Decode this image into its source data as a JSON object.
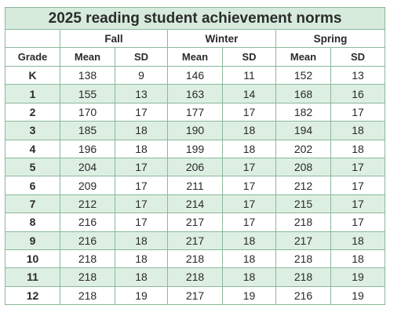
{
  "title": "2025 reading student achievement norms",
  "seasons": [
    "Fall",
    "Winter",
    "Spring"
  ],
  "headers": {
    "grade": "Grade",
    "mean": "Mean",
    "sd": "SD"
  },
  "rows": [
    {
      "grade": "K",
      "fall_mean": "138",
      "fall_sd": "9",
      "winter_mean": "146",
      "winter_sd": "11",
      "spring_mean": "152",
      "spring_sd": "13"
    },
    {
      "grade": "1",
      "fall_mean": "155",
      "fall_sd": "13",
      "winter_mean": "163",
      "winter_sd": "14",
      "spring_mean": "168",
      "spring_sd": "16"
    },
    {
      "grade": "2",
      "fall_mean": "170",
      "fall_sd": "17",
      "winter_mean": "177",
      "winter_sd": "17",
      "spring_mean": "182",
      "spring_sd": "17"
    },
    {
      "grade": "3",
      "fall_mean": "185",
      "fall_sd": "18",
      "winter_mean": "190",
      "winter_sd": "18",
      "spring_mean": "194",
      "spring_sd": "18"
    },
    {
      "grade": "4",
      "fall_mean": "196",
      "fall_sd": "18",
      "winter_mean": "199",
      "winter_sd": "18",
      "spring_mean": "202",
      "spring_sd": "18"
    },
    {
      "grade": "5",
      "fall_mean": "204",
      "fall_sd": "17",
      "winter_mean": "206",
      "winter_sd": "17",
      "spring_mean": "208",
      "spring_sd": "17"
    },
    {
      "grade": "6",
      "fall_mean": "209",
      "fall_sd": "17",
      "winter_mean": "211",
      "winter_sd": "17",
      "spring_mean": "212",
      "spring_sd": "17"
    },
    {
      "grade": "7",
      "fall_mean": "212",
      "fall_sd": "17",
      "winter_mean": "214",
      "winter_sd": "17",
      "spring_mean": "215",
      "spring_sd": "17"
    },
    {
      "grade": "8",
      "fall_mean": "216",
      "fall_sd": "17",
      "winter_mean": "217",
      "winter_sd": "17",
      "spring_mean": "218",
      "spring_sd": "17"
    },
    {
      "grade": "9",
      "fall_mean": "216",
      "fall_sd": "18",
      "winter_mean": "217",
      "winter_sd": "18",
      "spring_mean": "217",
      "spring_sd": "18"
    },
    {
      "grade": "10",
      "fall_mean": "218",
      "fall_sd": "18",
      "winter_mean": "218",
      "winter_sd": "18",
      "spring_mean": "218",
      "spring_sd": "18"
    },
    {
      "grade": "11",
      "fall_mean": "218",
      "fall_sd": "18",
      "winter_mean": "218",
      "winter_sd": "18",
      "spring_mean": "218",
      "spring_sd": "19"
    },
    {
      "grade": "12",
      "fall_mean": "218",
      "fall_sd": "19",
      "winter_mean": "217",
      "winter_sd": "19",
      "spring_mean": "216",
      "spring_sd": "19"
    }
  ],
  "colors": {
    "border": "#8ab89a",
    "title_bg": "#d6ebdc",
    "stripe_bg": "#ddefe2"
  }
}
